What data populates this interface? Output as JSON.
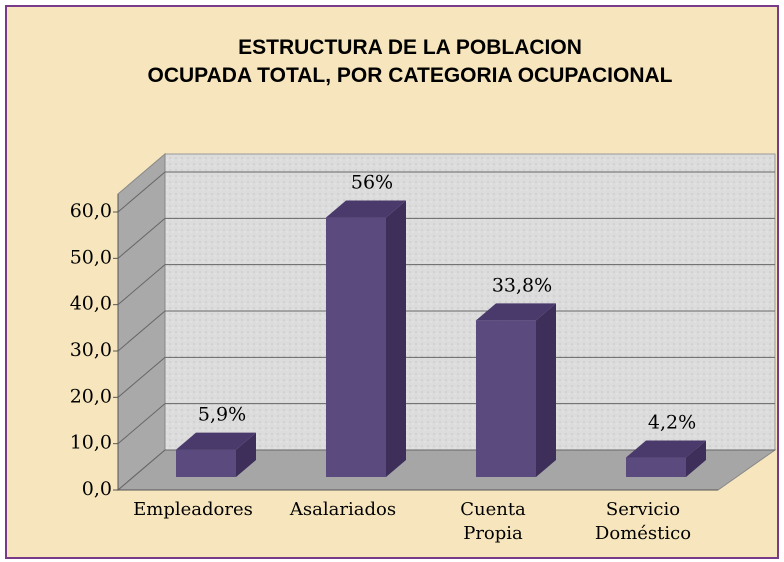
{
  "chart_data": {
    "type": "bar3d",
    "title": "ESTRUCTURA DE LA POBLACION OCUPADA TOTAL, POR CATEGORIA OCUPACIONAL",
    "categories": [
      "Empleadores",
      "Asalariados",
      "Cuenta Propia",
      "Servicio Doméstico"
    ],
    "values": [
      5.9,
      56,
      33.8,
      4.2
    ],
    "value_labels": [
      "5,9%",
      "56%",
      "33,8%",
      "4,2%"
    ],
    "color": "#5b4a7e",
    "ylim": [
      0,
      60
    ],
    "yticks": [
      {
        "value": 0,
        "label": "0,0"
      },
      {
        "value": 10,
        "label": "10,0"
      },
      {
        "value": 20,
        "label": "20,0"
      },
      {
        "value": 30,
        "label": "30,0"
      },
      {
        "value": 40,
        "label": "40,0"
      },
      {
        "value": 50,
        "label": "50,0"
      },
      {
        "value": 60,
        "label": "60,0"
      }
    ],
    "grid": true
  }
}
